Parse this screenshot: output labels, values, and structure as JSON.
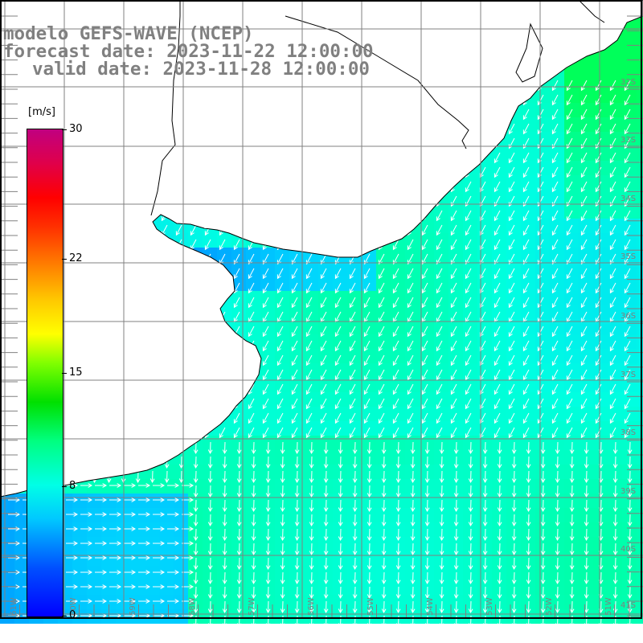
{
  "title": {
    "line1": "modelo GEFS-WAVE (NCEP)",
    "line2": "forecast date: 2023-11-22 12:00:00",
    "line3": "valid date: 2023-11-28 12:00:00"
  },
  "colorbar": {
    "units": "[m/s]",
    "min": 0,
    "max": 30,
    "ticks": [
      "30",
      "22",
      "15",
      "8",
      "0"
    ],
    "tick_values": [
      30,
      22,
      15,
      8,
      0
    ]
  },
  "axes": {
    "lat_labels": [
      "32S",
      "33S",
      "34S",
      "35S",
      "36S",
      "37S",
      "38S",
      "39S",
      "40S",
      "41S"
    ],
    "lon_labels": [
      "61W",
      "60W",
      "59W",
      "58W",
      "57W",
      "56W",
      "55W",
      "54W",
      "53W",
      "52W",
      "51W"
    ]
  },
  "colors": {
    "frame": "#000000",
    "grid": "#808080",
    "land": "#ffffff",
    "arrow": "#ffffff",
    "label": "#808080"
  }
}
